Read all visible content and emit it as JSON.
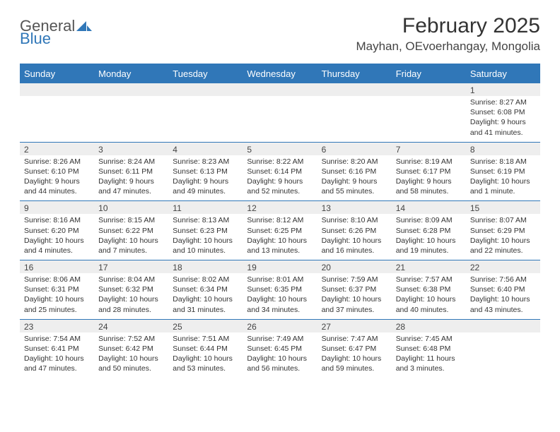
{
  "logo": {
    "general": "General",
    "blue": "Blue"
  },
  "title": "February 2025",
  "location": "Mayhan, OEvoerhangay, Mongolia",
  "colors": {
    "brand_blue": "#3077b8",
    "header_bg": "#3077b8",
    "header_text": "#ffffff",
    "daynum_bg": "#eeeeee",
    "border": "#3077b8",
    "text": "#333333"
  },
  "weekdays": [
    "Sunday",
    "Monday",
    "Tuesday",
    "Wednesday",
    "Thursday",
    "Friday",
    "Saturday"
  ],
  "weeks": [
    [
      {
        "n": "",
        "lines": []
      },
      {
        "n": "",
        "lines": []
      },
      {
        "n": "",
        "lines": []
      },
      {
        "n": "",
        "lines": []
      },
      {
        "n": "",
        "lines": []
      },
      {
        "n": "",
        "lines": []
      },
      {
        "n": "1",
        "lines": [
          "Sunrise: 8:27 AM",
          "Sunset: 6:08 PM",
          "Daylight: 9 hours and 41 minutes."
        ]
      }
    ],
    [
      {
        "n": "2",
        "lines": [
          "Sunrise: 8:26 AM",
          "Sunset: 6:10 PM",
          "Daylight: 9 hours and 44 minutes."
        ]
      },
      {
        "n": "3",
        "lines": [
          "Sunrise: 8:24 AM",
          "Sunset: 6:11 PM",
          "Daylight: 9 hours and 47 minutes."
        ]
      },
      {
        "n": "4",
        "lines": [
          "Sunrise: 8:23 AM",
          "Sunset: 6:13 PM",
          "Daylight: 9 hours and 49 minutes."
        ]
      },
      {
        "n": "5",
        "lines": [
          "Sunrise: 8:22 AM",
          "Sunset: 6:14 PM",
          "Daylight: 9 hours and 52 minutes."
        ]
      },
      {
        "n": "6",
        "lines": [
          "Sunrise: 8:20 AM",
          "Sunset: 6:16 PM",
          "Daylight: 9 hours and 55 minutes."
        ]
      },
      {
        "n": "7",
        "lines": [
          "Sunrise: 8:19 AM",
          "Sunset: 6:17 PM",
          "Daylight: 9 hours and 58 minutes."
        ]
      },
      {
        "n": "8",
        "lines": [
          "Sunrise: 8:18 AM",
          "Sunset: 6:19 PM",
          "Daylight: 10 hours and 1 minute."
        ]
      }
    ],
    [
      {
        "n": "9",
        "lines": [
          "Sunrise: 8:16 AM",
          "Sunset: 6:20 PM",
          "Daylight: 10 hours and 4 minutes."
        ]
      },
      {
        "n": "10",
        "lines": [
          "Sunrise: 8:15 AM",
          "Sunset: 6:22 PM",
          "Daylight: 10 hours and 7 minutes."
        ]
      },
      {
        "n": "11",
        "lines": [
          "Sunrise: 8:13 AM",
          "Sunset: 6:23 PM",
          "Daylight: 10 hours and 10 minutes."
        ]
      },
      {
        "n": "12",
        "lines": [
          "Sunrise: 8:12 AM",
          "Sunset: 6:25 PM",
          "Daylight: 10 hours and 13 minutes."
        ]
      },
      {
        "n": "13",
        "lines": [
          "Sunrise: 8:10 AM",
          "Sunset: 6:26 PM",
          "Daylight: 10 hours and 16 minutes."
        ]
      },
      {
        "n": "14",
        "lines": [
          "Sunrise: 8:09 AM",
          "Sunset: 6:28 PM",
          "Daylight: 10 hours and 19 minutes."
        ]
      },
      {
        "n": "15",
        "lines": [
          "Sunrise: 8:07 AM",
          "Sunset: 6:29 PM",
          "Daylight: 10 hours and 22 minutes."
        ]
      }
    ],
    [
      {
        "n": "16",
        "lines": [
          "Sunrise: 8:06 AM",
          "Sunset: 6:31 PM",
          "Daylight: 10 hours and 25 minutes."
        ]
      },
      {
        "n": "17",
        "lines": [
          "Sunrise: 8:04 AM",
          "Sunset: 6:32 PM",
          "Daylight: 10 hours and 28 minutes."
        ]
      },
      {
        "n": "18",
        "lines": [
          "Sunrise: 8:02 AM",
          "Sunset: 6:34 PM",
          "Daylight: 10 hours and 31 minutes."
        ]
      },
      {
        "n": "19",
        "lines": [
          "Sunrise: 8:01 AM",
          "Sunset: 6:35 PM",
          "Daylight: 10 hours and 34 minutes."
        ]
      },
      {
        "n": "20",
        "lines": [
          "Sunrise: 7:59 AM",
          "Sunset: 6:37 PM",
          "Daylight: 10 hours and 37 minutes."
        ]
      },
      {
        "n": "21",
        "lines": [
          "Sunrise: 7:57 AM",
          "Sunset: 6:38 PM",
          "Daylight: 10 hours and 40 minutes."
        ]
      },
      {
        "n": "22",
        "lines": [
          "Sunrise: 7:56 AM",
          "Sunset: 6:40 PM",
          "Daylight: 10 hours and 43 minutes."
        ]
      }
    ],
    [
      {
        "n": "23",
        "lines": [
          "Sunrise: 7:54 AM",
          "Sunset: 6:41 PM",
          "Daylight: 10 hours and 47 minutes."
        ]
      },
      {
        "n": "24",
        "lines": [
          "Sunrise: 7:52 AM",
          "Sunset: 6:42 PM",
          "Daylight: 10 hours and 50 minutes."
        ]
      },
      {
        "n": "25",
        "lines": [
          "Sunrise: 7:51 AM",
          "Sunset: 6:44 PM",
          "Daylight: 10 hours and 53 minutes."
        ]
      },
      {
        "n": "26",
        "lines": [
          "Sunrise: 7:49 AM",
          "Sunset: 6:45 PM",
          "Daylight: 10 hours and 56 minutes."
        ]
      },
      {
        "n": "27",
        "lines": [
          "Sunrise: 7:47 AM",
          "Sunset: 6:47 PM",
          "Daylight: 10 hours and 59 minutes."
        ]
      },
      {
        "n": "28",
        "lines": [
          "Sunrise: 7:45 AM",
          "Sunset: 6:48 PM",
          "Daylight: 11 hours and 3 minutes."
        ]
      },
      {
        "n": "",
        "lines": []
      }
    ]
  ]
}
